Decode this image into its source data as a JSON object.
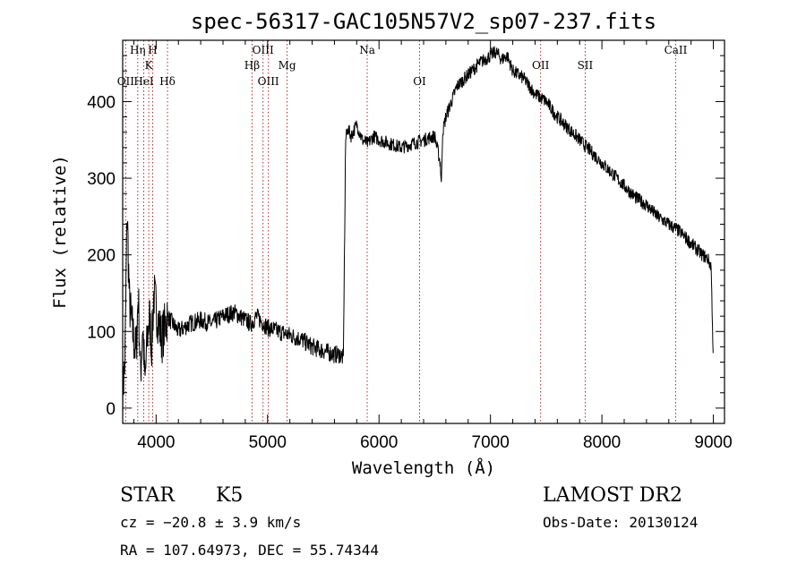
{
  "chart_data": {
    "type": "line",
    "title": "spec-56317-GAC105N57V2_sp07-237.fits",
    "xlabel": "Wavelength (Å)",
    "ylabel": "Flux (relative)",
    "xlim": [
      3700,
      9100
    ],
    "ylim": [
      -20,
      480
    ],
    "xticks": [
      4000,
      5000,
      6000,
      7000,
      8000,
      9000
    ],
    "yticks": [
      0,
      100,
      200,
      300,
      400
    ],
    "grid": false,
    "series": [
      {
        "color": "#000000",
        "x": [
          3700,
          3720,
          3740,
          3760,
          3780,
          3800,
          3820,
          3840,
          3860,
          3880,
          3900,
          3920,
          3940,
          3960,
          3980,
          4000,
          4050,
          4100,
          4150,
          4200,
          4300,
          4400,
          4500,
          4600,
          4700,
          4800,
          4850,
          4900,
          5000,
          5100,
          5200,
          5300,
          5400,
          5500,
          5600,
          5650,
          5680,
          5690,
          5700,
          5720,
          5750,
          5800,
          5850,
          5900,
          5950,
          6000,
          6100,
          6200,
          6300,
          6400,
          6500,
          6550,
          6560,
          6570,
          6600,
          6700,
          6800,
          6900,
          7000,
          7050,
          7100,
          7150,
          7200,
          7300,
          7400,
          7500,
          7600,
          7700,
          7800,
          7900,
          8000,
          8100,
          8200,
          8300,
          8400,
          8500,
          8600,
          8700,
          8800,
          8900,
          8950,
          8980,
          9000
        ],
        "y": [
          20,
          60,
          260,
          140,
          110,
          90,
          70,
          150,
          40,
          110,
          30,
          90,
          120,
          80,
          150,
          130,
          90,
          120,
          110,
          100,
          110,
          115,
          110,
          120,
          125,
          115,
          110,
          120,
          105,
          100,
          95,
          90,
          80,
          75,
          70,
          70,
          65,
          200,
          350,
          365,
          355,
          370,
          350,
          345,
          355,
          350,
          345,
          340,
          345,
          350,
          355,
          320,
          290,
          360,
          380,
          420,
          435,
          450,
          460,
          465,
          455,
          460,
          440,
          430,
          410,
          400,
          380,
          365,
          350,
          335,
          320,
          305,
          290,
          275,
          265,
          250,
          240,
          230,
          215,
          200,
          195,
          185,
          60
        ]
      }
    ],
    "lines": [
      {
        "label": "OII",
        "x": 3727,
        "row": 2
      },
      {
        "label": "Hη",
        "x": 3835,
        "row": 0
      },
      {
        "label": "HeI",
        "x": 3889,
        "row": 2
      },
      {
        "label": "K",
        "x": 3934,
        "row": 1
      },
      {
        "label": "H",
        "x": 3969,
        "row": 0
      },
      {
        "label": "Hδ",
        "x": 4102,
        "row": 2
      },
      {
        "label": "Hβ",
        "x": 4861,
        "row": 1
      },
      {
        "label": "OIII",
        "x": 4959,
        "row": 0
      },
      {
        "label": "OIII",
        "x": 5007,
        "row": 2
      },
      {
        "label": "Mg",
        "x": 5175,
        "row": 1
      },
      {
        "label": "Na",
        "x": 5894,
        "row": 0
      },
      {
        "label": "OI",
        "x": 6364,
        "row": 2
      },
      {
        "label": "OII",
        "x": 7450,
        "row": 1
      },
      {
        "label": "SII",
        "x": 7850,
        "row": 1
      },
      {
        "label": "CaII",
        "x": 8662,
        "row": 0
      }
    ]
  },
  "info": {
    "class": "STAR",
    "subclass": "K5",
    "survey": "LAMOST DR2",
    "cz": "cz = −20.8 ± 3.9 km/s",
    "obs_date": "Obs-Date: 20130124",
    "coords": "RA = 107.64973, DEC =  55.74344"
  }
}
